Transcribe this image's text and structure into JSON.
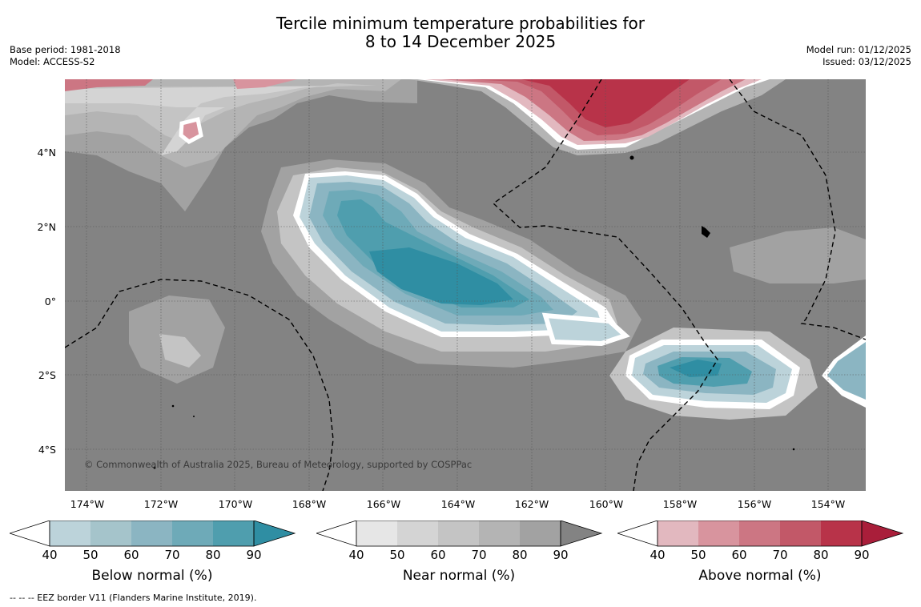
{
  "title": {
    "line1": "Tercile minimum temperature probabilities for",
    "line2": "8 to 14 December 2025"
  },
  "meta_left": {
    "base_period": "Base period: 1981-2018",
    "model": "Model: ACCESS-S2"
  },
  "meta_right": {
    "model_run": "Model run: 01/12/2025",
    "issued": "Issued: 03/12/2025"
  },
  "x_ticks": [
    "174°W",
    "172°W",
    "170°W",
    "168°W",
    "166°W",
    "164°W",
    "162°W",
    "160°W",
    "158°W",
    "156°W",
    "154°W"
  ],
  "y_ticks": [
    "4°N",
    "2°N",
    "0°",
    "2°S",
    "4°S"
  ],
  "copyright": "© Commonwealth of Australia 2025, Bureau of Meteorology, supported by COSPPac",
  "colorbars": [
    {
      "label": "Below normal (%)",
      "ticks": [
        "40",
        "50",
        "60",
        "70",
        "80",
        "90"
      ],
      "colors": [
        "#bcd3da",
        "#a5c4cb",
        "#8bb5c2",
        "#6eaab8",
        "#4f9eae",
        "#2f8ea3"
      ]
    },
    {
      "label": "Near normal (%)",
      "ticks": [
        "40",
        "50",
        "60",
        "70",
        "80",
        "90"
      ],
      "colors": [
        "#e6e6e6",
        "#d4d4d4",
        "#c4c4c4",
        "#b4b4b4",
        "#a2a2a2",
        "#838383"
      ]
    },
    {
      "label": "Above normal (%)",
      "ticks": [
        "40",
        "50",
        "60",
        "70",
        "80",
        "90"
      ],
      "colors": [
        "#e2b8bf",
        "#d8949e",
        "#cc7683",
        "#c25868",
        "#b83349",
        "#a91e3a"
      ]
    }
  ],
  "footnote": "--  --  -- EEZ border V11 (Flanders Marine Institute, 2019)."
}
